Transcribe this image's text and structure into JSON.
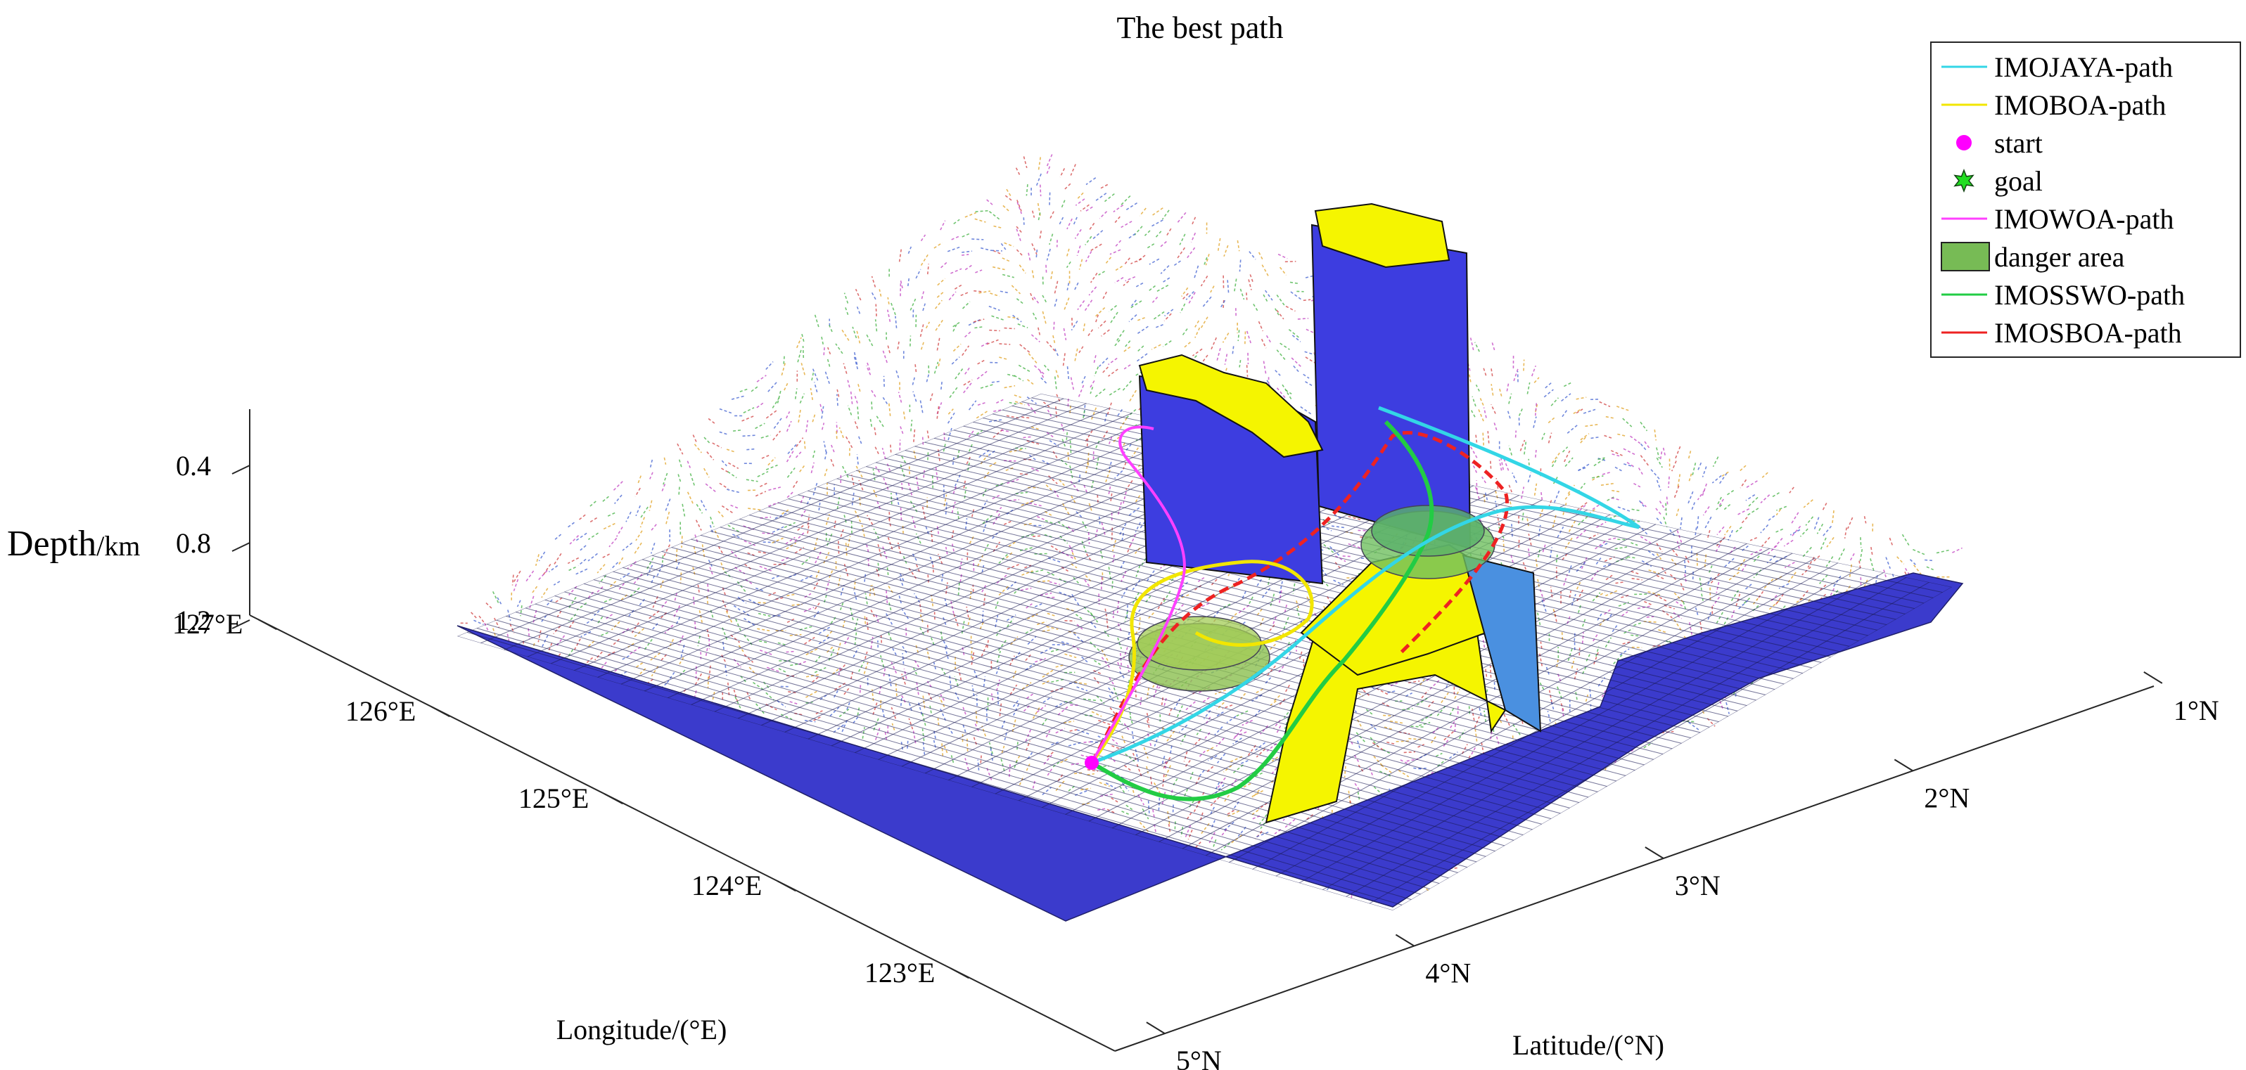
{
  "chart_data": {
    "type": "3d-surface-with-paths",
    "title": "The best path",
    "xlabel": "Longitude/(°E)",
    "ylabel": "Latitude/(°N)",
    "zlabel_main": "Depth",
    "zlabel_unit": "/km",
    "x_ticks": [
      "123°E",
      "124°E",
      "125°E",
      "126°E",
      "127°E"
    ],
    "y_ticks": [
      "1°N",
      "2°N",
      "3°N",
      "4°N",
      "5°N"
    ],
    "z_ticks": [
      "0.4",
      "0.8",
      "1.2"
    ],
    "z_reversed": true,
    "legend_placement": "top-right",
    "legend": [
      {
        "label": "IMOJAYA-path",
        "color": "#33d6e6",
        "kind": "line"
      },
      {
        "label": "IMOBOA-path",
        "color": "#f2e600",
        "kind": "line"
      },
      {
        "label": "start",
        "color": "#ff00ff",
        "kind": "circle"
      },
      {
        "label": "goal",
        "color": "#22dd22",
        "kind": "star"
      },
      {
        "label": "IMOWOA-path",
        "color": "#ff40ff",
        "kind": "line"
      },
      {
        "label": "danger area",
        "color": "#77bb55",
        "kind": "patch"
      },
      {
        "label": "IMOSSWO-path",
        "color": "#22cc44",
        "kind": "line"
      },
      {
        "label": "IMOSBOA-path",
        "color": "#ee2222",
        "kind": "line"
      }
    ],
    "seabed_color": "#3b3bcc",
    "obstacle_top_color": "#f5f500",
    "current_field_colors": [
      "#d04040",
      "#40b040",
      "#e0a020",
      "#4060d0",
      "#c040c0"
    ]
  }
}
